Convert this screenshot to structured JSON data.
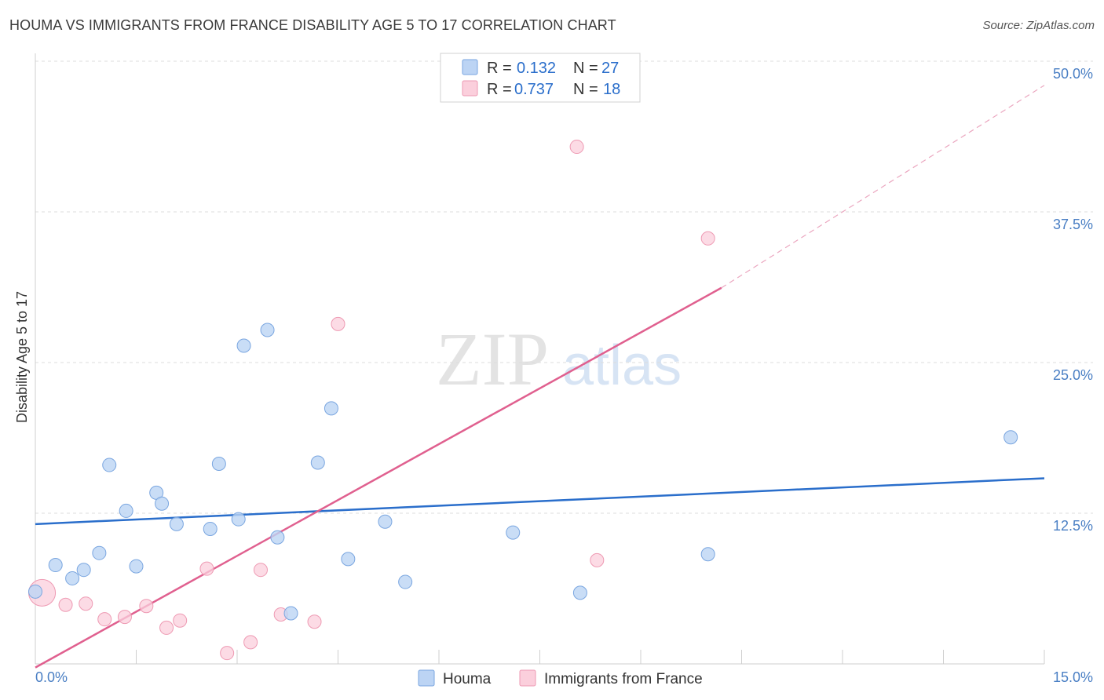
{
  "title": "HOUMA VS IMMIGRANTS FROM FRANCE DISABILITY AGE 5 TO 17 CORRELATION CHART",
  "source": "Source: ZipAtlas.com",
  "watermark": {
    "zip": "ZIP",
    "atlas": "atlas"
  },
  "colors": {
    "houma_fill": "#bcd4f4",
    "houma_stroke": "#7aa6e0",
    "houma_line": "#2a6ecb",
    "france_fill": "#fbcfdc",
    "france_stroke": "#ee9ab3",
    "france_line": "#e0608f",
    "tick": "#4a7fc4",
    "grid": "#dcdcdc"
  },
  "legend": {
    "r_label": "R =",
    "n_label": "N =",
    "rows": [
      {
        "r": "0.132",
        "n": "27"
      },
      {
        "r": "0.737",
        "n": "18"
      }
    ]
  },
  "chart_data": {
    "type": "scatter",
    "title": "HOUMA VS IMMIGRANTS FROM FRANCE DISABILITY AGE 5 TO 17 CORRELATION CHART",
    "xlabel": "",
    "ylabel": "Disability Age 5 to 17",
    "xlim": [
      0,
      15
    ],
    "ylim": [
      0,
      50
    ],
    "x_tick_labels": [
      "0.0%",
      "15.0%"
    ],
    "y_ticks": [
      12.5,
      25,
      37.5,
      50
    ],
    "y_tick_labels": [
      "12.5%",
      "25.0%",
      "37.5%",
      "50.0%"
    ],
    "grid": true,
    "legend_position": "top-center",
    "series": [
      {
        "name": "Houma",
        "r": 0.132,
        "n": 27,
        "trend": {
          "x": [
            0,
            15
          ],
          "y": [
            11.6,
            15.4
          ]
        },
        "points": [
          {
            "x": 0.0,
            "y": 6.0
          },
          {
            "x": 0.3,
            "y": 8.2
          },
          {
            "x": 0.55,
            "y": 7.1
          },
          {
            "x": 0.72,
            "y": 7.8
          },
          {
            "x": 0.95,
            "y": 9.2
          },
          {
            "x": 1.1,
            "y": 16.5
          },
          {
            "x": 1.35,
            "y": 12.7
          },
          {
            "x": 1.5,
            "y": 8.1
          },
          {
            "x": 1.8,
            "y": 14.2
          },
          {
            "x": 1.88,
            "y": 13.3
          },
          {
            "x": 2.1,
            "y": 11.6
          },
          {
            "x": 2.6,
            "y": 11.2
          },
          {
            "x": 2.73,
            "y": 16.6
          },
          {
            "x": 3.02,
            "y": 12.0
          },
          {
            "x": 3.1,
            "y": 26.4
          },
          {
            "x": 3.45,
            "y": 27.7
          },
          {
            "x": 3.6,
            "y": 10.5
          },
          {
            "x": 3.8,
            "y": 4.2
          },
          {
            "x": 4.2,
            "y": 16.7
          },
          {
            "x": 4.4,
            "y": 21.2
          },
          {
            "x": 4.65,
            "y": 8.7
          },
          {
            "x": 5.2,
            "y": 11.8
          },
          {
            "x": 5.5,
            "y": 6.8
          },
          {
            "x": 7.1,
            "y": 10.9
          },
          {
            "x": 8.1,
            "y": 5.9
          },
          {
            "x": 10.0,
            "y": 9.1
          },
          {
            "x": 14.5,
            "y": 18.8
          }
        ]
      },
      {
        "name": "Immigrants from France",
        "r": 0.737,
        "n": 18,
        "trend": {
          "x": [
            0,
            10.2
          ],
          "y": [
            -0.3,
            31.2
          ]
        },
        "trend_extension": {
          "x": [
            10.2,
            15
          ],
          "y": [
            31.2,
            48.0
          ]
        },
        "points": [
          {
            "x": 0.1,
            "y": 5.9,
            "big": true
          },
          {
            "x": 0.45,
            "y": 4.9
          },
          {
            "x": 0.75,
            "y": 5.0
          },
          {
            "x": 1.03,
            "y": 3.7
          },
          {
            "x": 1.33,
            "y": 3.9
          },
          {
            "x": 1.65,
            "y": 4.8
          },
          {
            "x": 1.95,
            "y": 3.0
          },
          {
            "x": 2.15,
            "y": 3.6
          },
          {
            "x": 2.55,
            "y": 7.9
          },
          {
            "x": 2.85,
            "y": 0.9
          },
          {
            "x": 3.2,
            "y": 1.8
          },
          {
            "x": 3.35,
            "y": 7.8
          },
          {
            "x": 3.65,
            "y": 4.1
          },
          {
            "x": 4.15,
            "y": 3.5
          },
          {
            "x": 4.5,
            "y": 28.2
          },
          {
            "x": 8.05,
            "y": 42.9
          },
          {
            "x": 8.35,
            "y": 8.6
          },
          {
            "x": 10.0,
            "y": 35.3
          }
        ]
      }
    ]
  }
}
